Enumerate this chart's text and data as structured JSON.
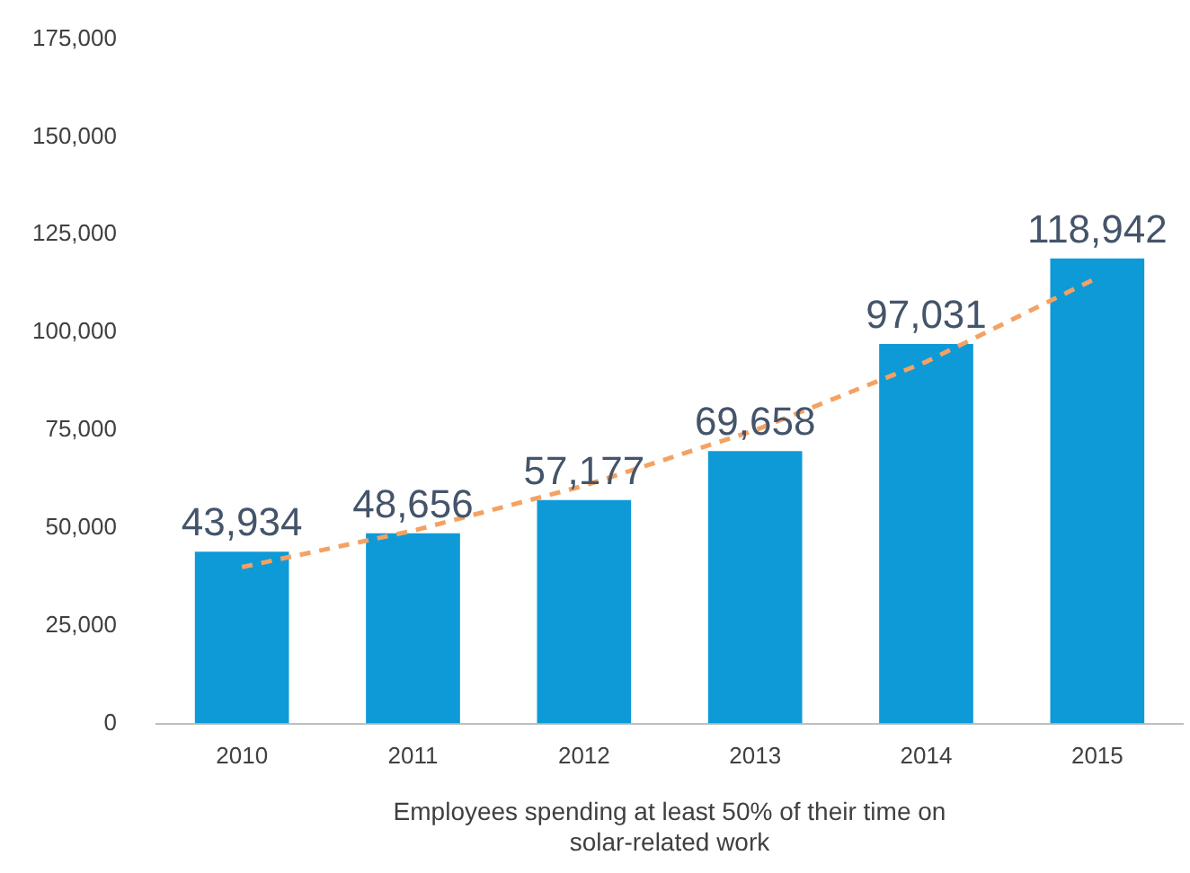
{
  "chart_data": {
    "type": "bar",
    "xlabel": "Employees spending at least 50% of their time on solar-related work",
    "categories": [
      "2010",
      "2011",
      "2012",
      "2013",
      "2014",
      "2015"
    ],
    "series": [
      {
        "color": "#0e9ad7",
        "values": [
          43934,
          48656,
          57177,
          69658,
          97031,
          118942
        ],
        "value_labels": [
          "43,934",
          "48,656",
          "57,177",
          "69,658",
          "97,031",
          "118,942"
        ]
      },
      {
        "type": "line",
        "color": "#f4a263",
        "line_style": "dashed",
        "marker": "none",
        "values": [
          40000,
          49300,
          60800,
          75000,
          92500,
          114000
        ]
      }
    ],
    "ylim": [
      0,
      175000
    ],
    "yticks": [
      {
        "value": 0,
        "label": "0"
      },
      {
        "value": 25000,
        "label": "25,000"
      },
      {
        "value": 50000,
        "label": "50,000"
      },
      {
        "value": 75000,
        "label": "75,000"
      },
      {
        "value": 100000,
        "label": "100,000"
      },
      {
        "value": 125000,
        "label": "125,000"
      },
      {
        "value": 150000,
        "label": "150,000"
      },
      {
        "value": 175000,
        "label": "175,000"
      }
    ],
    "grid": false,
    "legend": false
  }
}
